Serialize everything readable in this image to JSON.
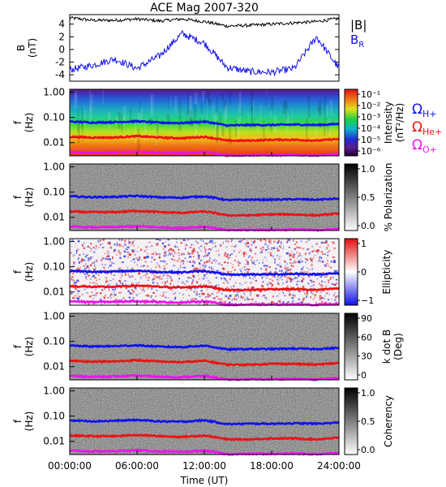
{
  "title": "ACE Mag 2007-320",
  "xlabel": "Time (UT)",
  "xticks": [
    "00:00:00",
    "06:00:00",
    "12:00:00",
    "18:00:00",
    "24:00:00"
  ],
  "freq_ticks": [
    "1.00",
    "0.10",
    "0.01"
  ],
  "freq_label": "f",
  "freq_unit": "(Hz)",
  "top_panel": {
    "ylabel": "B",
    "yunit": "(nT)",
    "yticks": [
      "4",
      "2",
      "0",
      "-2",
      "-4"
    ],
    "legend": [
      {
        "text": "|B|",
        "color": "#000000"
      },
      {
        "text": "B",
        "sub": "R",
        "color": "#1010ee"
      }
    ]
  },
  "cyclotron_legend": [
    {
      "symbol": "Ω",
      "sub": "H+",
      "color": "#1010ee"
    },
    {
      "symbol": "Ω",
      "sub": "He+",
      "color": "#ee1010"
    },
    {
      "symbol": "Ω",
      "sub": "O+",
      "color": "#ee10ee"
    }
  ],
  "colorbars": [
    {
      "label": "Intensity",
      "unit": "(nT²/Hz)",
      "ticks": [
        "10⁻¹",
        "10⁻²",
        "10⁻³",
        "10⁻⁴",
        "10⁻⁵",
        "10⁻⁶"
      ],
      "scheme": "rainbow"
    },
    {
      "label": "% Polarization",
      "unit": "",
      "ticks": [
        "1.0",
        "0.5",
        "0.0"
      ],
      "scheme": "gray"
    },
    {
      "label": "Ellipticity",
      "unit": "",
      "ticks": [
        "1",
        "0",
        "−1"
      ],
      "scheme": "bwr"
    },
    {
      "label": "k dot B",
      "unit": "(Deg)",
      "ticks": [
        "90",
        "60",
        "30",
        "0"
      ],
      "scheme": "gray"
    },
    {
      "label": "Coherency",
      "unit": "",
      "ticks": [
        "1.0",
        "0.5",
        "0.0"
      ],
      "scheme": "gray"
    }
  ],
  "chart_data": {
    "type": "line",
    "title": "ACE Mag 2007-320",
    "x_hours": [
      0,
      2,
      4,
      6,
      8,
      10,
      12,
      14,
      16,
      18,
      20,
      22,
      24
    ],
    "xlim": [
      0,
      24
    ],
    "series_B": [
      {
        "name": "|B|",
        "values": [
          5.0,
          4.6,
          4.6,
          4.8,
          4.5,
          4.8,
          4.4,
          3.7,
          3.8,
          4.0,
          4.2,
          4.4,
          4.9
        ],
        "ylim": [
          -5,
          5.5
        ]
      },
      {
        "name": "B_R",
        "values": [
          -3.2,
          -2.5,
          -1.5,
          -3.0,
          -1.0,
          2.5,
          1.0,
          -2.8,
          -3.5,
          -3.6,
          -3.0,
          2.0,
          -3.0
        ],
        "ylim": [
          -5,
          5.5
        ]
      }
    ],
    "cyclotron_freq_hz": {
      "H+": [
        0.068,
        0.063,
        0.065,
        0.07,
        0.062,
        0.06,
        0.068,
        0.048,
        0.05,
        0.05,
        0.052,
        0.05,
        0.055
      ],
      "He+": [
        0.017,
        0.016,
        0.016,
        0.018,
        0.016,
        0.015,
        0.017,
        0.012,
        0.012,
        0.013,
        0.013,
        0.012,
        0.014
      ],
      "O+": [
        0.0043,
        0.004,
        0.0041,
        0.0044,
        0.004,
        0.0038,
        0.0043,
        0.0031,
        0.0032,
        0.0032,
        0.0033,
        0.0031,
        0.0035
      ]
    },
    "ylim_freq_hz": [
      0.003,
      1.3
    ],
    "yscale_freq": "log"
  }
}
